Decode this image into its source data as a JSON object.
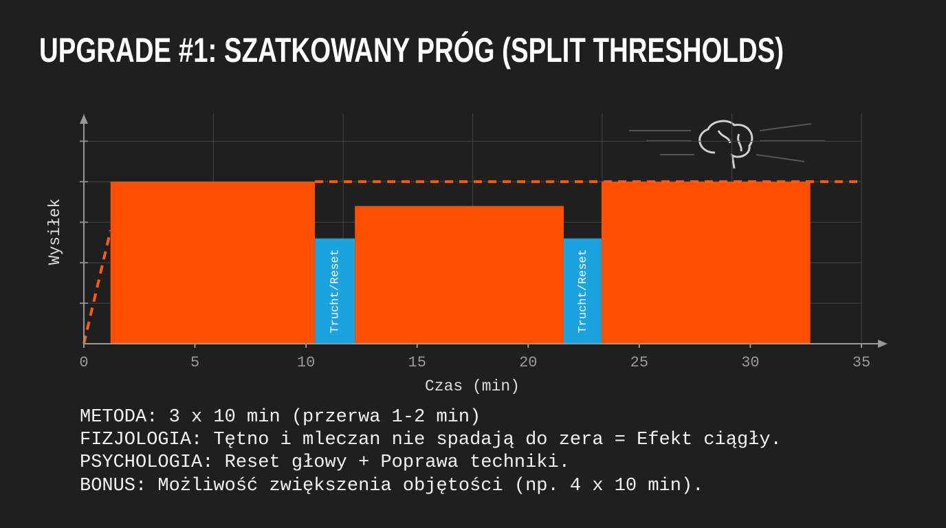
{
  "chart_data": {
    "type": "block",
    "title": "UPGRADE #1: SZATKOWANY PRÓG (SPLIT THRESHOLDS)",
    "x_label": "Czas (min)",
    "y_label": "Wysiłek",
    "xlim": [
      0,
      35
    ],
    "xticks": [
      0,
      5,
      10,
      15,
      20,
      25,
      30,
      35
    ],
    "x_grid_lines": [
      0,
      5.83,
      11.67,
      17.5,
      23.33,
      29.17,
      35
    ],
    "ylim": [
      0,
      5.6
    ],
    "yticks": [
      1,
      2,
      3,
      4,
      5
    ],
    "grid": true,
    "segments": [
      {
        "x": [
          1.2,
          10.4
        ],
        "value": 4,
        "color": "#ff4f00"
      },
      {
        "x": [
          10.4,
          12.2
        ],
        "value": 2.6,
        "color": "#1ba3dd",
        "label": "Trucht/Reset"
      },
      {
        "x": [
          12.2,
          21.6
        ],
        "value": 3.4,
        "color": "#ff4f00"
      },
      {
        "x": [
          21.6,
          23.3
        ],
        "value": 2.6,
        "color": "#1ba3dd",
        "label": "Trucht/Reset"
      },
      {
        "x": [
          23.3,
          32.7
        ],
        "value": 4,
        "color": "#ff4f00"
      }
    ],
    "lines": [
      {
        "x": [
          0,
          1.2
        ],
        "values": [
          0,
          2.8
        ],
        "color": "#ff5a14"
      },
      {
        "x": [
          10.4,
          35
        ],
        "values": [
          4,
          4
        ],
        "color": "#ff5a14"
      }
    ]
  },
  "notes": [
    "METODA: 3 x 10 min (przerwa 1-2 min)",
    "FIZJOLOGIA: Tętno i mleczan nie spadają do zera = Efekt ciągły.",
    "PSYCHOLOGIA: Reset głowy + Poprawa techniki.",
    "BONUS: Możliwość zwiększenia objętości (np. 4 x 10 min)."
  ]
}
